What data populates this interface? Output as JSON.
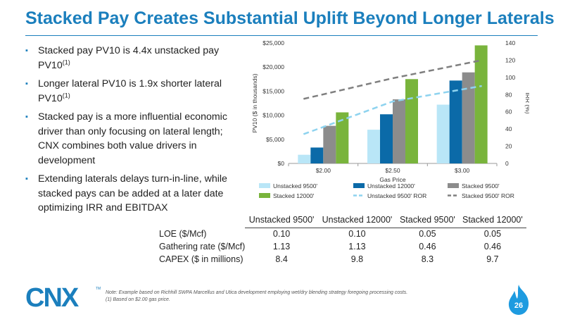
{
  "title": "Stacked Pay Creates Substantial Uplift Beyond Longer Laterals",
  "bullets": [
    {
      "text": "Stacked pay PV10 is 4.4x unstacked pay PV10",
      "sup": "(1)"
    },
    {
      "text": "Longer lateral PV10 is 1.9x shorter lateral PV10",
      "sup": "(1)"
    },
    {
      "text": "Stacked pay is a more influential economic driver than only focusing on lateral length; CNX combines both value drivers in development",
      "sup": ""
    },
    {
      "text": "Extending laterals delays turn-in-line, while stacked pays can be added at a later date optimizing IRR and EBITDAX",
      "sup": ""
    }
  ],
  "bullet_mark": "▪",
  "chart_data": {
    "type": "bar",
    "categories": [
      "$2.00",
      "$2.50",
      "$3.00"
    ],
    "xlabel": "Gas Price",
    "ylabel": "PV10 ($ in thousands)",
    "y2label": "IRR (%)",
    "ylim": [
      0,
      25000
    ],
    "y2lim": [
      0,
      140
    ],
    "yticks": [
      "$0",
      "$5,000",
      "$10,000",
      "$15,000",
      "$20,000",
      "$25,000"
    ],
    "y2ticks": [
      "0",
      "20",
      "40",
      "60",
      "80",
      "100",
      "120",
      "140"
    ],
    "series": [
      {
        "name": "Unstacked 9500'",
        "values": [
          1800,
          7000,
          12200
        ],
        "color": "#b9e6f7"
      },
      {
        "name": "Unstacked 12000'",
        "values": [
          3300,
          10200,
          17200
        ],
        "color": "#0b6aa8"
      },
      {
        "name": "Stacked 9500'",
        "values": [
          7800,
          13300,
          18900
        ],
        "color": "#8c8c8c"
      },
      {
        "name": "Stacked 12000'",
        "values": [
          10600,
          17500,
          24500
        ],
        "color": "#79b43c"
      }
    ],
    "lines": [
      {
        "name": "Unstacked 9500' ROR",
        "values": [
          34,
          72,
          90
        ],
        "color": "#8ed3ef"
      },
      {
        "name": "Stacked 9500' ROR",
        "values": [
          75,
          99,
          120
        ],
        "color": "#7f7f7f"
      }
    ],
    "legend": "bottom"
  },
  "table": {
    "headers": [
      "Unstacked 9500'",
      "Unstacked 12000'",
      "Stacked 9500'",
      "Stacked 12000'"
    ],
    "rows": [
      {
        "label": "LOE ($/Mcf)",
        "values": [
          "0.10",
          "0.10",
          "0.05",
          "0.05"
        ]
      },
      {
        "label": "Gathering rate ($/Mcf)",
        "values": [
          "1.13",
          "1.13",
          "0.46",
          "0.46"
        ]
      },
      {
        "label": "CAPEX ($ in millions)",
        "values": [
          "8.4",
          "9.8",
          "8.3",
          "9.7"
        ]
      }
    ]
  },
  "logo_text": "CNX",
  "logo_tm": "TM",
  "note": "Note: Example based on Richhill SWPA Marcellus and Utica development employing wet/dry blending strategy foregoing processing costs.",
  "footnote": "(1)   Based on $2.00 gas price.",
  "page_number": "26",
  "colors": {
    "accent": "#1b7fbd",
    "flame": "#1e9be0"
  }
}
